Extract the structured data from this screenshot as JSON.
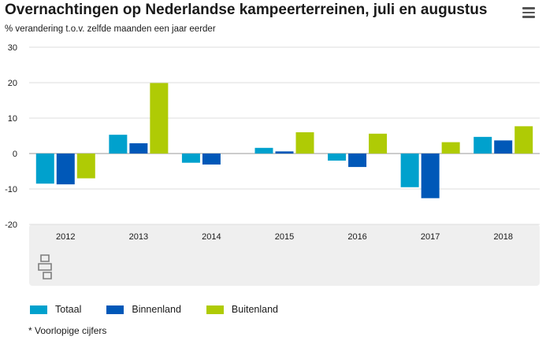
{
  "title": "Overnachtingen op Nederlandse kampeerterreinen, juli en augustus",
  "subtitle": "% verandering t.o.v. zelfde maanden een jaar eerder",
  "footnote": "* Voorlopige cijfers",
  "chart_data": {
    "type": "bar",
    "title": "Overnachtingen op Nederlandse kampeerterreinen, juli en augustus",
    "subtitle": "% verandering t.o.v. zelfde maanden een jaar eerder",
    "xlabel": "",
    "ylabel": "",
    "ylim": [
      -20,
      30
    ],
    "yticks": [
      30,
      20,
      10,
      0,
      -10,
      -20
    ],
    "grid": true,
    "legend_position": "bottom-left",
    "categories": [
      "2012",
      "2013",
      "2014",
      "2015",
      "2016",
      "2017",
      "2018"
    ],
    "series": [
      {
        "name": "Totaal",
        "color": "#00a1cd",
        "values": [
          -8.5,
          5.3,
          -2.6,
          1.6,
          -2.0,
          -9.5,
          4.7
        ]
      },
      {
        "name": "Binnenland",
        "color": "#0058b8",
        "values": [
          -8.7,
          2.9,
          -3.1,
          0.6,
          -3.8,
          -12.6,
          3.7
        ]
      },
      {
        "name": "Buitenland",
        "color": "#afcb05",
        "values": [
          -7.0,
          19.9,
          0,
          6.0,
          5.6,
          3.2,
          7.7
        ]
      }
    ]
  }
}
